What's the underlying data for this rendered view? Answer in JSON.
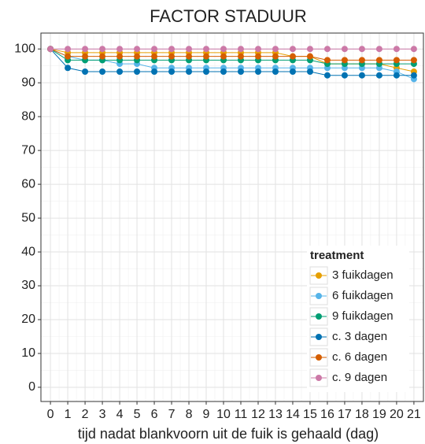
{
  "chart_data": {
    "type": "line",
    "title": "FACTOR STADUUR",
    "x_label": "tijd nadat blankvoorn uit de fuik is gehaald (dag)",
    "legend_title": "treatment",
    "x": [
      0,
      1,
      2,
      3,
      4,
      5,
      6,
      7,
      8,
      9,
      10,
      11,
      12,
      13,
      14,
      15,
      16,
      17,
      18,
      19,
      20,
      21
    ],
    "xlim": [
      -0.55,
      21.55
    ],
    "xticks": [
      0,
      1,
      2,
      3,
      4,
      5,
      6,
      7,
      8,
      9,
      10,
      11,
      12,
      13,
      14,
      15,
      16,
      17,
      18,
      19,
      20,
      21
    ],
    "ylim": [
      -4.2,
      104.7
    ],
    "yticks": [
      0,
      10,
      20,
      30,
      40,
      50,
      60,
      70,
      80,
      90,
      100
    ],
    "grid": true,
    "legend": "bottom-right",
    "series": [
      {
        "name": "3 fuikdagen",
        "color": "#E69F00",
        "values": [
          100,
          98.9,
          98.9,
          98.9,
          98.9,
          98.9,
          98.9,
          98.9,
          98.9,
          98.9,
          98.9,
          98.9,
          98.9,
          98.9,
          97.8,
          97.8,
          95.6,
          95.6,
          95.6,
          95.6,
          94.4,
          93.3
        ]
      },
      {
        "name": "6 fuikdagen",
        "color": "#56B4E9",
        "values": [
          100,
          97.8,
          96.7,
          96.7,
          95.6,
          95.6,
          94.4,
          94.4,
          94.4,
          94.4,
          94.4,
          94.4,
          94.4,
          94.4,
          94.4,
          94.4,
          94.4,
          94.4,
          94.4,
          94.4,
          93.3,
          91.1
        ]
      },
      {
        "name": "9 fuikdagen",
        "color": "#009E73",
        "values": [
          100,
          96.7,
          96.7,
          96.7,
          96.7,
          96.7,
          96.7,
          96.7,
          96.7,
          96.7,
          96.7,
          96.7,
          96.7,
          96.7,
          96.7,
          96.7,
          95.6,
          95.6,
          95.6,
          95.6,
          95.6,
          95.6
        ]
      },
      {
        "name": "c. 3 dagen",
        "color": "#0072B2",
        "values": [
          100,
          94.4,
          93.3,
          93.3,
          93.3,
          93.3,
          93.3,
          93.3,
          93.3,
          93.3,
          93.3,
          93.3,
          93.3,
          93.3,
          93.3,
          93.3,
          92.2,
          92.2,
          92.2,
          92.2,
          92.2,
          92.2
        ]
      },
      {
        "name": "c. 6 dagen",
        "color": "#D55E00",
        "values": [
          100,
          97.8,
          97.8,
          97.8,
          97.8,
          97.8,
          97.8,
          97.8,
          97.8,
          97.8,
          97.8,
          97.8,
          97.8,
          97.8,
          97.8,
          97.8,
          96.7,
          96.7,
          96.7,
          96.7,
          96.7,
          96.7
        ]
      },
      {
        "name": "c. 9 dagen",
        "color": "#CC79A7",
        "values": [
          100,
          100,
          100,
          100,
          100,
          100,
          100,
          100,
          100,
          100,
          100,
          100,
          100,
          100,
          100,
          100,
          100,
          100,
          100,
          100,
          100,
          100
        ]
      }
    ]
  }
}
